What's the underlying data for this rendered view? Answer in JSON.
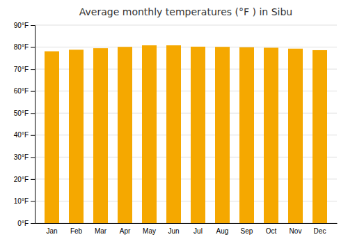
{
  "chart_data": {
    "type": "bar",
    "title": "Average monthly temperatures (°F ) in Sibu",
    "categories": [
      "Jan",
      "Feb",
      "Mar",
      "Apr",
      "May",
      "Jun",
      "Jul",
      "Aug",
      "Sep",
      "Oct",
      "Nov",
      "Dec"
    ],
    "values": [
      78.1,
      78.8,
      79.5,
      80.1,
      80.8,
      80.8,
      80.2,
      80.1,
      79.9,
      79.7,
      79.3,
      78.6
    ],
    "color": "#F5A800",
    "ylim": [
      0,
      90
    ],
    "yticks": [
      {
        "value": 0,
        "label": "0°F"
      },
      {
        "value": 10,
        "label": "10°F"
      },
      {
        "value": 20,
        "label": "20°F"
      },
      {
        "value": 30,
        "label": "30°F"
      },
      {
        "value": 40,
        "label": "40°F"
      },
      {
        "value": 50,
        "label": "50°F"
      },
      {
        "value": 60,
        "label": "60°F"
      },
      {
        "value": 70,
        "label": "70°F"
      },
      {
        "value": 80,
        "label": "80°F"
      },
      {
        "value": 90,
        "label": "90°F"
      }
    ],
    "grid": true
  }
}
